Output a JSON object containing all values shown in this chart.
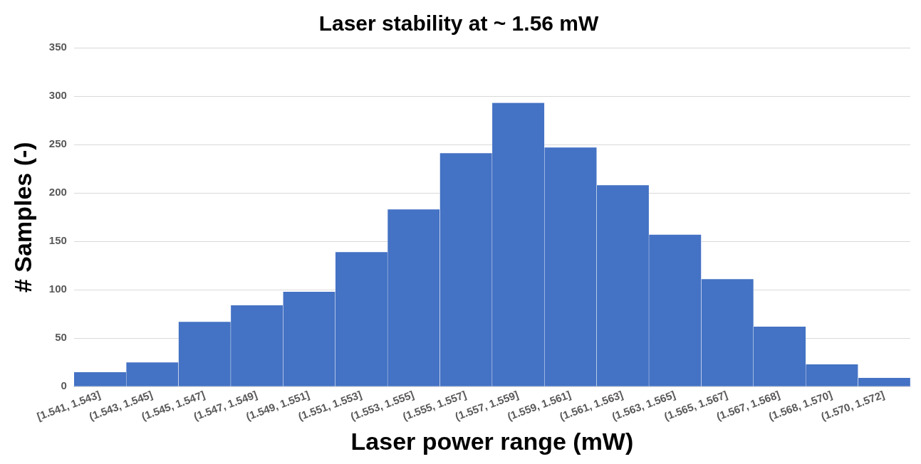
{
  "chart_data": {
    "type": "bar",
    "title": "Laser stability at ~ 1.56 mW",
    "xlabel": "Laser power range (mW)",
    "ylabel": "# Samples (-)",
    "categories": [
      "[1.541, 1.543]",
      "(1.543, 1.545]",
      "(1.545, 1.547]",
      "(1.547, 1.549]",
      "(1.549, 1.551]",
      "(1.551, 1.553]",
      "(1.553, 1.555]",
      "(1.555, 1.557]",
      "(1.557, 1.559]",
      "(1.559, 1.561]",
      "(1.561, 1.563]",
      "(1.563, 1.565]",
      "(1.565, 1.567]",
      "(1.567, 1.568]",
      "(1.568, 1.570]",
      "(1.570, 1.572]"
    ],
    "values": [
      15,
      25,
      67,
      84,
      98,
      139,
      183,
      241,
      293,
      247,
      208,
      157,
      111,
      62,
      23,
      9
    ],
    "color": "#4472c4",
    "ylim": [
      0,
      350
    ],
    "yticks": [
      0,
      50,
      100,
      150,
      200,
      250,
      300,
      350
    ],
    "grid": "y",
    "legend": false
  }
}
